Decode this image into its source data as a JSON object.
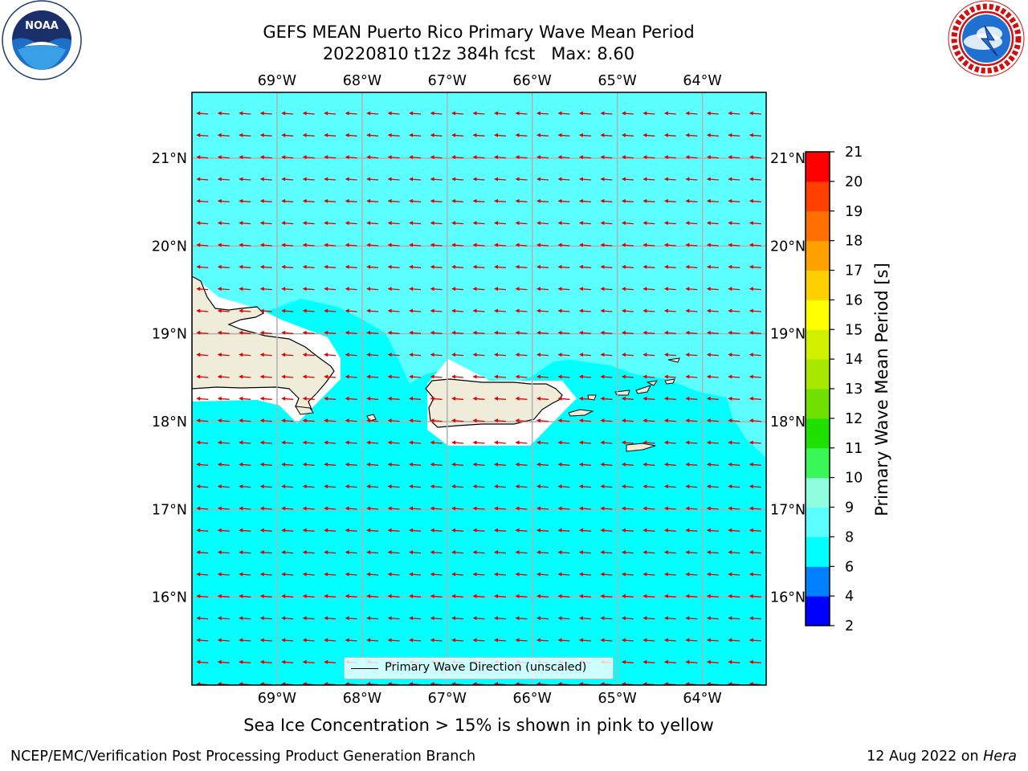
{
  "header": {
    "title_line1": "GEFS MEAN Puerto Rico Primary Wave Mean Period",
    "title_line2": "20220810 t12z 384h fcst   Max: 8.60"
  },
  "logos": {
    "left": {
      "icon": "noaa-logo-icon",
      "text": "NOAA"
    },
    "right": {
      "icon": "national-weather-service-logo-icon"
    }
  },
  "map": {
    "type": "map",
    "lon_range": [
      -70.0,
      -63.25
    ],
    "lat_range": [
      15.0,
      21.75
    ],
    "lon_ticks": [
      -69,
      -68,
      -67,
      -66,
      -65,
      -64
    ],
    "lat_ticks": [
      21,
      20,
      19,
      18,
      17,
      16
    ],
    "lon_tick_labels": [
      "69°W",
      "68°W",
      "67°W",
      "66°W",
      "65°W",
      "64°W"
    ],
    "lat_tick_labels": [
      "21°N",
      "20°N",
      "19°N",
      "18°N",
      "17°N",
      "16°N"
    ],
    "grid": true,
    "arrow_direction": "west",
    "arrow_color": "#e00000",
    "colors": {
      "period_6_8": "#00ffff",
      "period_8_9": "#5cffff",
      "land": "#efedda",
      "land_buffer": "#ffffff",
      "grid": "#b0b0b0"
    },
    "legend": {
      "label": "Primary Wave Direction (unscaled)",
      "placement": "bottom-center"
    }
  },
  "colorbar": {
    "label": "Primary Wave Mean Period [s]",
    "boundaries": [
      2,
      4,
      6,
      8,
      9,
      10,
      11,
      12,
      13,
      14,
      15,
      16,
      17,
      18,
      19,
      20,
      21
    ],
    "tick_labels": [
      "2",
      "4",
      "6",
      "8",
      "9",
      "10",
      "11",
      "12",
      "13",
      "14",
      "15",
      "16",
      "17",
      "18",
      "19",
      "20",
      "21"
    ],
    "colors": [
      "#0000ff",
      "#0080ff",
      "#00ffff",
      "#5cffff",
      "#90ffe0",
      "#38f858",
      "#20e000",
      "#70e000",
      "#a8e800",
      "#d0f000",
      "#ffff00",
      "#ffd000",
      "#ffa000",
      "#ff7000",
      "#ff4000",
      "#ff0000"
    ]
  },
  "footer": {
    "subtitle": "Sea Ice Concentration > 15% is shown in pink to yellow",
    "left": "NCEP/EMC/Verification Post Processing Product Generation Branch",
    "right_prefix": "12 Aug 2022 on ",
    "right_host": "Hera"
  }
}
